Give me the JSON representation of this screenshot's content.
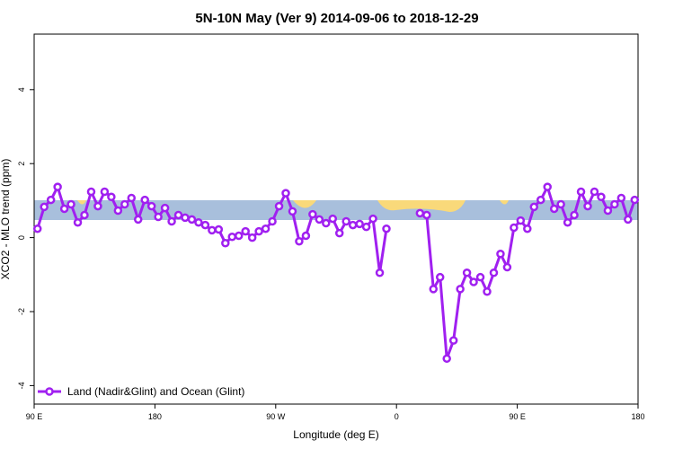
{
  "chart_data": {
    "type": "line",
    "title": "5N-10N May (Ver 9)   2014-09-06 to 2018-12-29",
    "xlabel": "Longitude (deg E)",
    "ylabel": "XCO2 - MLO trend (ppm)",
    "xlim": [
      90,
      540
    ],
    "ylim": [
      -4.5,
      5.5
    ],
    "xticks": [
      {
        "value": 90,
        "label": "90 E"
      },
      180,
      {
        "value": 270,
        "label": "90 W"
      },
      {
        "value": 360,
        "label": "0"
      },
      {
        "value": 450,
        "label": "90 E"
      },
      {
        "value": 540,
        "label": "180"
      }
    ],
    "yticks": [
      -4,
      -2,
      0,
      2,
      4
    ],
    "legend": "bottom-left",
    "x": [
      92.5,
      97.5,
      102.5,
      107.5,
      112.5,
      117.5,
      122.5,
      127.5,
      132.5,
      137.5,
      142.5,
      147.5,
      152.5,
      157.5,
      162.5,
      167.5,
      172.5,
      177.5,
      182.5,
      187.5,
      192.5,
      197.5,
      202.5,
      207.5,
      212.5,
      217.5,
      222.5,
      227.5,
      232.5,
      237.5,
      242.5,
      247.5,
      252.5,
      257.5,
      262.5,
      267.5,
      272.5,
      277.5,
      282.5,
      287.5,
      292.5,
      297.5,
      302.5,
      307.5,
      312.5,
      317.5,
      322.5,
      327.5,
      332.5,
      337.5,
      342.5,
      347.5,
      352.5,
      357.5,
      362.5,
      367.5,
      372.5,
      377.5,
      382.5,
      387.5,
      392.5,
      397.5,
      402.5,
      407.5,
      412.5,
      417.5,
      422.5,
      427.5,
      432.5,
      437.5,
      442.5,
      447.5,
      452.5,
      457.5,
      462.5,
      467.5,
      472.5,
      477.5,
      482.5,
      487.5,
      492.5,
      497.5,
      502.5,
      507.5,
      512.5,
      517.5,
      522.5,
      527.5,
      532.5,
      537.5
    ],
    "series": [
      {
        "name": "Land (Nadir&Glint) and Ocean (Glint)",
        "color": "#a020f0",
        "values": [
          0.24,
          0.83,
          1.02,
          1.37,
          0.78,
          0.9,
          0.41,
          0.61,
          1.24,
          0.85,
          1.24,
          1.1,
          0.73,
          0.9,
          1.07,
          0.49,
          1.02,
          0.85,
          0.56,
          0.8,
          0.44,
          0.61,
          0.54,
          0.49,
          0.41,
          0.34,
          0.2,
          0.22,
          -0.15,
          0.02,
          0.05,
          0.17,
          0.0,
          0.17,
          0.24,
          0.44,
          0.85,
          1.2,
          0.71,
          -0.1,
          0.05,
          0.63,
          0.49,
          0.39,
          0.51,
          0.12,
          0.44,
          0.34,
          0.37,
          0.29,
          0.51,
          -0.95,
          0.24,
          null,
          null,
          null,
          null,
          0.66,
          0.61,
          -1.39,
          -1.07,
          -3.27,
          -2.78,
          -1.39,
          -0.95,
          -1.2,
          -1.07,
          -1.46,
          -0.95,
          -0.44,
          -0.8,
          0.27,
          0.46,
          0.24,
          0.83,
          1.02,
          1.37,
          0.78,
          0.9,
          0.41,
          0.61,
          1.24,
          0.85,
          1.24,
          1.1,
          0.73,
          0.9,
          1.07,
          0.49,
          1.02
        ]
      }
    ]
  }
}
